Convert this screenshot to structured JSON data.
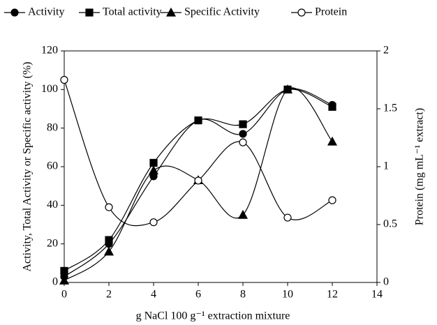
{
  "chart_data": {
    "type": "line",
    "x": [
      0,
      2,
      4,
      6,
      8,
      10,
      12
    ],
    "series": [
      {
        "name": "Activity",
        "color": "#000000",
        "marker": "circle",
        "values": [
          3,
          20,
          55,
          84,
          77,
          100,
          92
        ]
      },
      {
        "name": "Total activity",
        "color": "#000000",
        "marker": "square",
        "values": [
          6,
          22,
          62,
          84,
          82,
          100,
          91
        ]
      },
      {
        "name": "Specific Activity",
        "color": "#000000",
        "marker": "triangle",
        "values": [
          1,
          16,
          58,
          53,
          35,
          100,
          73
        ]
      },
      {
        "name": "Protein",
        "color": "#000000",
        "marker": "open-circle",
        "axis": "y2",
        "values": [
          1.75,
          0.65,
          0.52,
          0.88,
          1.21,
          0.56,
          0.71
        ]
      }
    ],
    "xlabel": "g NaCl 100 g⁻¹  extraction mixture",
    "ylabel": "Activity, Total Activity or Specific activity (%)",
    "y2label": "Protein (mg mL⁻¹ extract)",
    "xlim": [
      0,
      14
    ],
    "xticks": [
      0,
      2,
      4,
      6,
      8,
      10,
      12,
      14
    ],
    "ylim": [
      0,
      120
    ],
    "yticks": [
      0,
      20,
      40,
      60,
      80,
      100,
      120
    ],
    "y2lim": [
      0,
      2
    ],
    "y2ticks": [
      0,
      0.5,
      1,
      1.5,
      2
    ],
    "smooth": true
  }
}
